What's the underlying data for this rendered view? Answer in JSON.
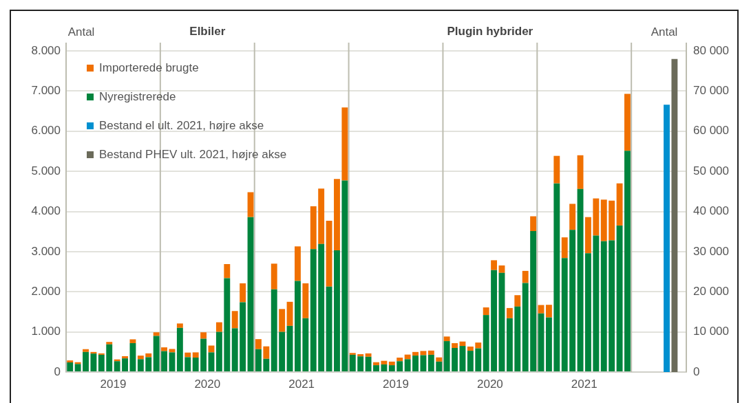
{
  "chart_data": {
    "type": "bar",
    "stacked": true,
    "grid": "y",
    "legend": "top left",
    "ylabel": "Antal",
    "y2label": "Antal",
    "annotations": [
      "Elbiler",
      "Plugin hybrider"
    ],
    "categories": [
      null,
      null,
      null,
      null,
      null,
      null,
      "2019",
      null,
      null,
      null,
      null,
      null,
      null,
      null,
      null,
      null,
      null,
      null,
      "2020",
      null,
      null,
      null,
      null,
      null,
      null,
      null,
      null,
      null,
      null,
      null,
      "2021",
      null,
      null,
      null,
      null,
      null,
      null,
      null,
      null,
      null,
      null,
      null,
      "2019",
      null,
      null,
      null,
      null,
      null,
      null,
      null,
      null,
      null,
      null,
      null,
      "2020",
      null,
      null,
      null,
      null,
      null,
      null,
      null,
      null,
      null,
      null,
      null,
      "2021",
      null,
      null,
      null,
      null,
      null,
      null,
      null,
      null,
      null,
      null,
      null,
      null
    ],
    "ylim": [
      0,
      8000
    ],
    "yticks": [
      {
        "value": 0,
        "label": "0"
      },
      {
        "value": 1000,
        "label": "1.000"
      },
      {
        "value": 2000,
        "label": "2.000"
      },
      {
        "value": 3000,
        "label": "3.000"
      },
      {
        "value": 4000,
        "label": "4.000"
      },
      {
        "value": 5000,
        "label": "5.000"
      },
      {
        "value": 6000,
        "label": "6.000"
      },
      {
        "value": 7000,
        "label": "7.000"
      },
      {
        "value": 8000,
        "label": "8.000"
      }
    ],
    "y2lim": [
      0,
      80000
    ],
    "y2ticks": [
      {
        "value": 0,
        "label": "0"
      },
      {
        "value": 10000,
        "label": "10 000"
      },
      {
        "value": 20000,
        "label": "20 000"
      },
      {
        "value": 30000,
        "label": "30 000"
      },
      {
        "value": 40000,
        "label": "40 000"
      },
      {
        "value": 50000,
        "label": "50 000"
      },
      {
        "value": 60000,
        "label": "60 000"
      },
      {
        "value": 70000,
        "label": "70 000"
      },
      {
        "value": 80000,
        "label": "80 000"
      }
    ],
    "series": [
      {
        "name": "Nyregistrerede",
        "color": "#00843d",
        "values": [
          240,
          200,
          500,
          460,
          430,
          690,
          270,
          340,
          720,
          320,
          370,
          900,
          520,
          490,
          1100,
          370,
          360,
          830,
          490,
          1000,
          2340,
          1090,
          1740,
          3860,
          570,
          330,
          2060,
          1000,
          1150,
          2270,
          1340,
          3060,
          3190,
          2130,
          3030,
          4770,
          430,
          390,
          380,
          170,
          190,
          170,
          270,
          320,
          410,
          420,
          430,
          260,
          770,
          600,
          650,
          530,
          590,
          1420,
          2540,
          2470,
          1340,
          1630,
          2220,
          3510,
          1460,
          1360,
          4700,
          2840,
          3540,
          4560,
          2960,
          3400,
          3260,
          3280,
          3650,
          5510,
          null,
          null,
          null,
          null,
          null,
          null,
          null
        ]
      },
      {
        "name": "Importerede brugte",
        "color": "#f07000",
        "values": [
          50,
          45,
          70,
          40,
          35,
          60,
          45,
          55,
          95,
          90,
          95,
          90,
          95,
          85,
          110,
          115,
          130,
          160,
          170,
          240,
          350,
          430,
          470,
          620,
          250,
          310,
          640,
          570,
          600,
          860,
          870,
          1070,
          1380,
          1640,
          1780,
          1820,
          45,
          55,
          85,
          75,
          90,
          90,
          90,
          115,
          90,
          105,
          105,
          105,
          115,
          120,
          110,
          105,
          145,
          190,
          245,
          185,
          255,
          285,
          300,
          370,
          210,
          315,
          685,
          515,
          650,
          840,
          900,
          925,
          1035,
          990,
          1050,
          1420,
          null,
          null,
          null,
          null,
          null,
          null,
          null
        ]
      },
      {
        "name": "Bestand el ult. 2021, højre akse",
        "color": "#0090d0",
        "axis": "y2",
        "values": [
          null,
          null,
          null,
          null,
          null,
          null,
          null,
          null,
          null,
          null,
          null,
          null,
          null,
          null,
          null,
          null,
          null,
          null,
          null,
          null,
          null,
          null,
          null,
          null,
          null,
          null,
          null,
          null,
          null,
          null,
          null,
          null,
          null,
          null,
          null,
          null,
          null,
          null,
          null,
          null,
          null,
          null,
          null,
          null,
          null,
          null,
          null,
          null,
          null,
          null,
          null,
          null,
          null,
          null,
          null,
          null,
          null,
          null,
          null,
          null,
          null,
          null,
          null,
          null,
          null,
          null,
          null,
          null,
          null,
          null,
          null,
          null,
          null,
          null,
          null,
          null,
          66600,
          null,
          null
        ]
      },
      {
        "name": "Bestand PHEV ult. 2021, højre akse",
        "color": "#6b6b5a",
        "axis": "y2",
        "values": [
          null,
          null,
          null,
          null,
          null,
          null,
          null,
          null,
          null,
          null,
          null,
          null,
          null,
          null,
          null,
          null,
          null,
          null,
          null,
          null,
          null,
          null,
          null,
          null,
          null,
          null,
          null,
          null,
          null,
          null,
          null,
          null,
          null,
          null,
          null,
          null,
          null,
          null,
          null,
          null,
          null,
          null,
          null,
          null,
          null,
          null,
          null,
          null,
          null,
          null,
          null,
          null,
          null,
          null,
          null,
          null,
          null,
          null,
          null,
          null,
          null,
          null,
          null,
          null,
          null,
          null,
          null,
          null,
          null,
          null,
          null,
          null,
          null,
          null,
          null,
          null,
          null,
          78000,
          null
        ]
      }
    ]
  }
}
